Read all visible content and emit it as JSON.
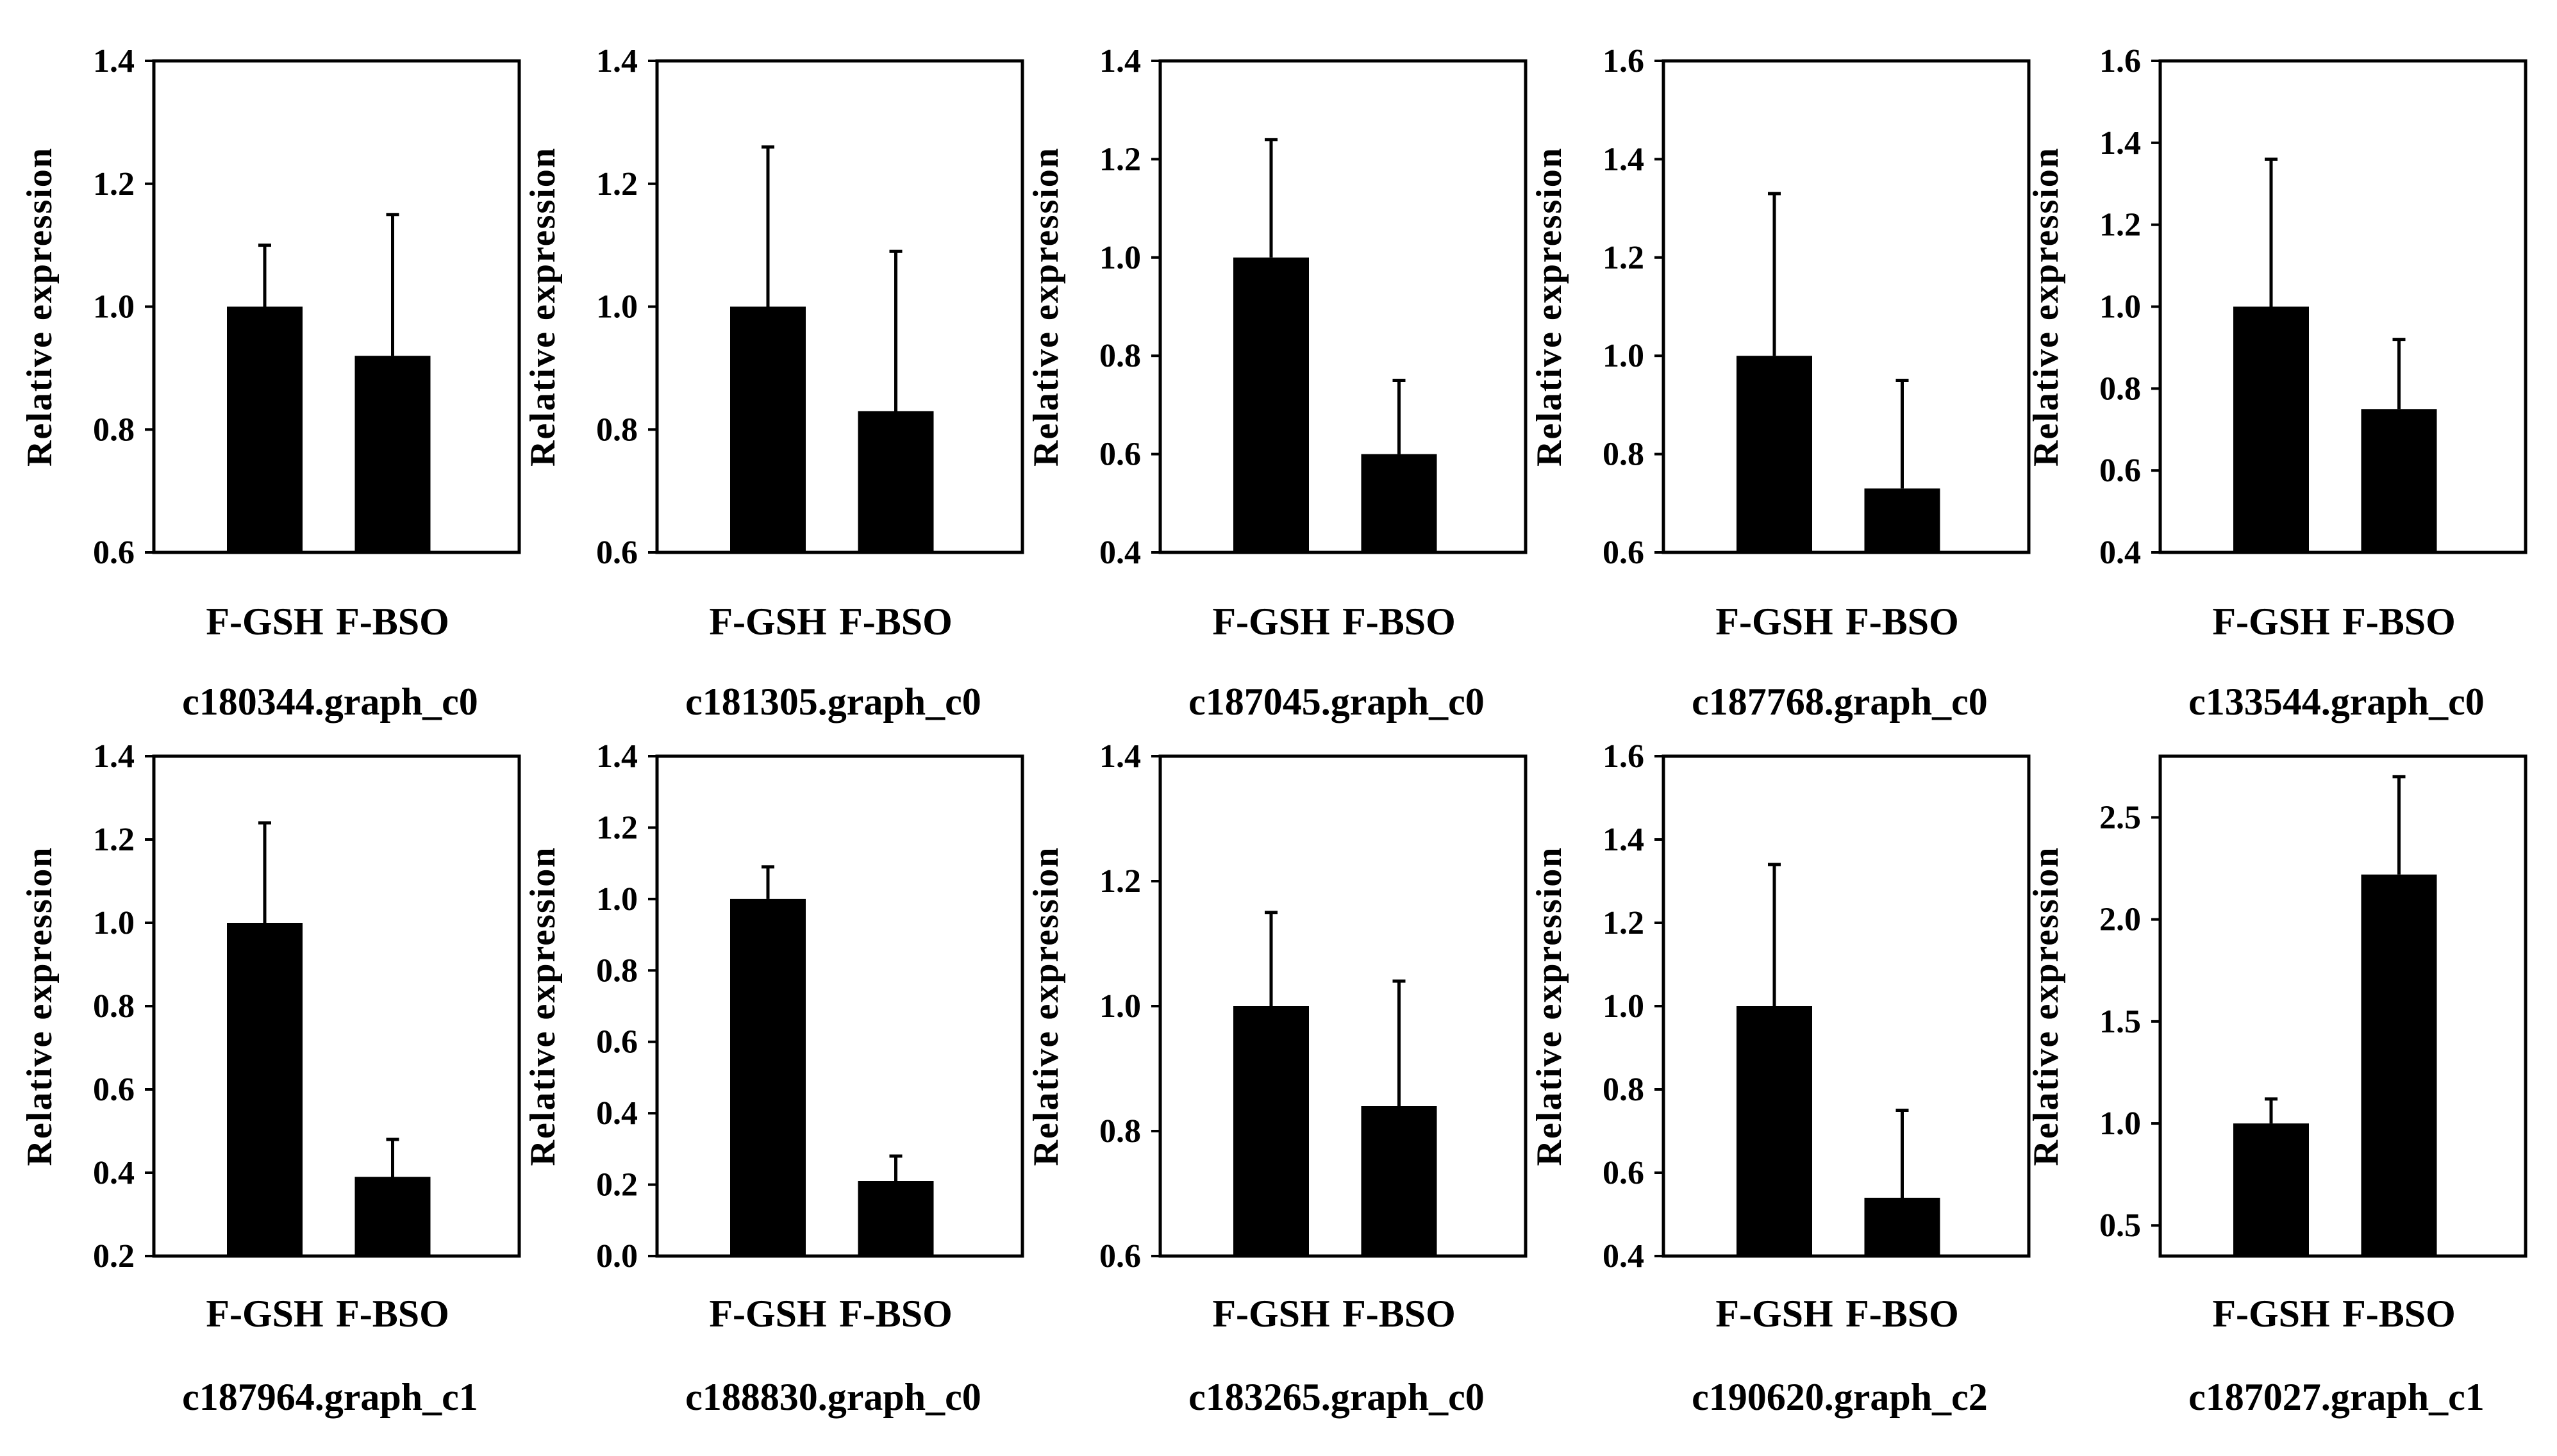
{
  "colors": {
    "bar": "#000000",
    "axis": "#000000",
    "background": "#ffffff"
  },
  "chart_data": [
    {
      "type": "bar",
      "gene": "c180344.graph_c0",
      "ylabel": "Relative expression",
      "categories": [
        "F-GSH",
        "F-BSO"
      ],
      "values": [
        1.0,
        0.92
      ],
      "errors": [
        0.1,
        0.23
      ],
      "ylim": [
        0.6,
        1.4
      ],
      "yticks": [
        "0.6",
        "0.8",
        "1.0",
        "1.2",
        "1.4"
      ]
    },
    {
      "type": "bar",
      "gene": "c181305.graph_c0",
      "ylabel": "Relative expression",
      "categories": [
        "F-GSH",
        "F-BSO"
      ],
      "values": [
        1.0,
        0.83
      ],
      "errors": [
        0.26,
        0.26
      ],
      "ylim": [
        0.6,
        1.4
      ],
      "yticks": [
        "0.6",
        "0.8",
        "1.0",
        "1.2",
        "1.4"
      ]
    },
    {
      "type": "bar",
      "gene": "c187045.graph_c0",
      "ylabel": "Relative expression",
      "categories": [
        "F-GSH",
        "F-BSO"
      ],
      "values": [
        1.0,
        0.6
      ],
      "errors": [
        0.24,
        0.15
      ],
      "ylim": [
        0.4,
        1.4
      ],
      "yticks": [
        "0.4",
        "0.6",
        "0.8",
        "1.0",
        "1.2",
        "1.4"
      ]
    },
    {
      "type": "bar",
      "gene": "c187768.graph_c0",
      "ylabel": "Relative expression",
      "categories": [
        "F-GSH",
        "F-BSO"
      ],
      "values": [
        1.0,
        0.73
      ],
      "errors": [
        0.33,
        0.22
      ],
      "ylim": [
        0.6,
        1.6
      ],
      "yticks": [
        "0.6",
        "0.8",
        "1.0",
        "1.2",
        "1.4",
        "1.6"
      ]
    },
    {
      "type": "bar",
      "gene": "c133544.graph_c0",
      "ylabel": "Relative expression",
      "categories": [
        "F-GSH",
        "F-BSO"
      ],
      "values": [
        1.0,
        0.75
      ],
      "errors": [
        0.36,
        0.17
      ],
      "ylim": [
        0.4,
        1.6
      ],
      "yticks": [
        "0.4",
        "0.6",
        "0.8",
        "1.0",
        "1.2",
        "1.4",
        "1.6"
      ]
    },
    {
      "type": "bar",
      "gene": "c187964.graph_c1",
      "ylabel": "Relative expression",
      "categories": [
        "F-GSH",
        "F-BSO"
      ],
      "values": [
        1.0,
        0.39
      ],
      "errors": [
        0.24,
        0.09
      ],
      "ylim": [
        0.2,
        1.4
      ],
      "yticks": [
        "0.2",
        "0.4",
        "0.6",
        "0.8",
        "1.0",
        "1.2",
        "1.4"
      ]
    },
    {
      "type": "bar",
      "gene": "c188830.graph_c0",
      "ylabel": "Relative expression",
      "categories": [
        "F-GSH",
        "F-BSO"
      ],
      "values": [
        1.0,
        0.21
      ],
      "errors": [
        0.09,
        0.07
      ],
      "ylim": [
        0.0,
        1.4
      ],
      "yticks": [
        "0.0",
        "0.2",
        "0.4",
        "0.6",
        "0.8",
        "1.0",
        "1.2",
        "1.4"
      ]
    },
    {
      "type": "bar",
      "gene": "c183265.graph_c0",
      "ylabel": "Relative expression",
      "categories": [
        "F-GSH",
        "F-BSO"
      ],
      "values": [
        1.0,
        0.84
      ],
      "errors": [
        0.15,
        0.2
      ],
      "ylim": [
        0.6,
        1.4
      ],
      "yticks": [
        "0.6",
        "0.8",
        "1.0",
        "1.2",
        "1.4"
      ]
    },
    {
      "type": "bar",
      "gene": "c190620.graph_c2",
      "ylabel": "Relative expression",
      "categories": [
        "F-GSH",
        "F-BSO"
      ],
      "values": [
        1.0,
        0.54
      ],
      "errors": [
        0.34,
        0.21
      ],
      "ylim": [
        0.4,
        1.6
      ],
      "yticks": [
        "0.4",
        "0.6",
        "0.8",
        "1.0",
        "1.2",
        "1.4",
        "1.6"
      ]
    },
    {
      "type": "bar",
      "gene": "c187027.graph_c1",
      "ylabel": "Relative expression",
      "categories": [
        "F-GSH",
        "F-BSO"
      ],
      "values": [
        1.0,
        2.22
      ],
      "errors": [
        0.12,
        0.48
      ],
      "ylim": [
        0.35,
        2.8
      ],
      "yticks": [
        "0.5",
        "1.0",
        "1.5",
        "2.0",
        "2.5"
      ]
    }
  ]
}
